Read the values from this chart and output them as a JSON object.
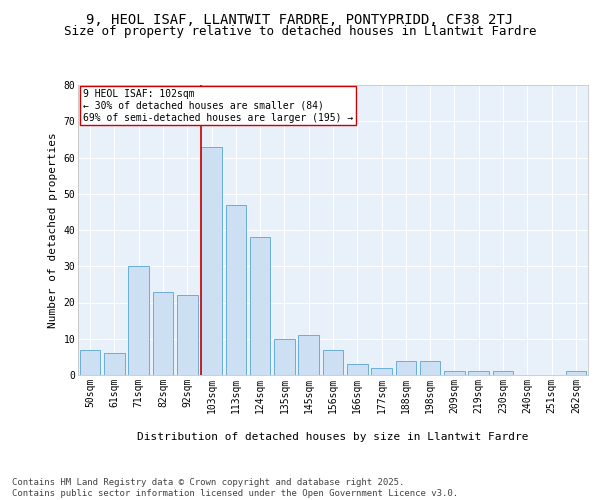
{
  "title1": "9, HEOL ISAF, LLANTWIT FARDRE, PONTYPRIDD, CF38 2TJ",
  "title2": "Size of property relative to detached houses in Llantwit Fardre",
  "xlabel": "Distribution of detached houses by size in Llantwit Fardre",
  "ylabel": "Number of detached properties",
  "categories": [
    "50sqm",
    "61sqm",
    "71sqm",
    "82sqm",
    "92sqm",
    "103sqm",
    "113sqm",
    "124sqm",
    "135sqm",
    "145sqm",
    "156sqm",
    "166sqm",
    "177sqm",
    "188sqm",
    "198sqm",
    "209sqm",
    "219sqm",
    "230sqm",
    "240sqm",
    "251sqm",
    "262sqm"
  ],
  "values": [
    7,
    6,
    30,
    23,
    22,
    63,
    47,
    38,
    10,
    11,
    7,
    3,
    2,
    4,
    4,
    1,
    1,
    1,
    0,
    0,
    1
  ],
  "bar_color": "#ccdff3",
  "bar_edge_color": "#6aaed6",
  "red_line_color": "#cc0000",
  "annotation_text": "9 HEOL ISAF: 102sqm\n← 30% of detached houses are smaller (84)\n69% of semi-detached houses are larger (195) →",
  "annotation_box_color": "#ffffff",
  "annotation_box_edge": "#cc0000",
  "footer_text": "Contains HM Land Registry data © Crown copyright and database right 2025.\nContains public sector information licensed under the Open Government Licence v3.0.",
  "ylim": [
    0,
    80
  ],
  "yticks": [
    0,
    10,
    20,
    30,
    40,
    50,
    60,
    70,
    80
  ],
  "bg_color": "#e8f0fa",
  "grid_color": "#ffffff",
  "title_fontsize": 10,
  "subtitle_fontsize": 9,
  "axis_label_fontsize": 8,
  "tick_fontsize": 7,
  "annotation_fontsize": 7,
  "footer_fontsize": 6.5
}
